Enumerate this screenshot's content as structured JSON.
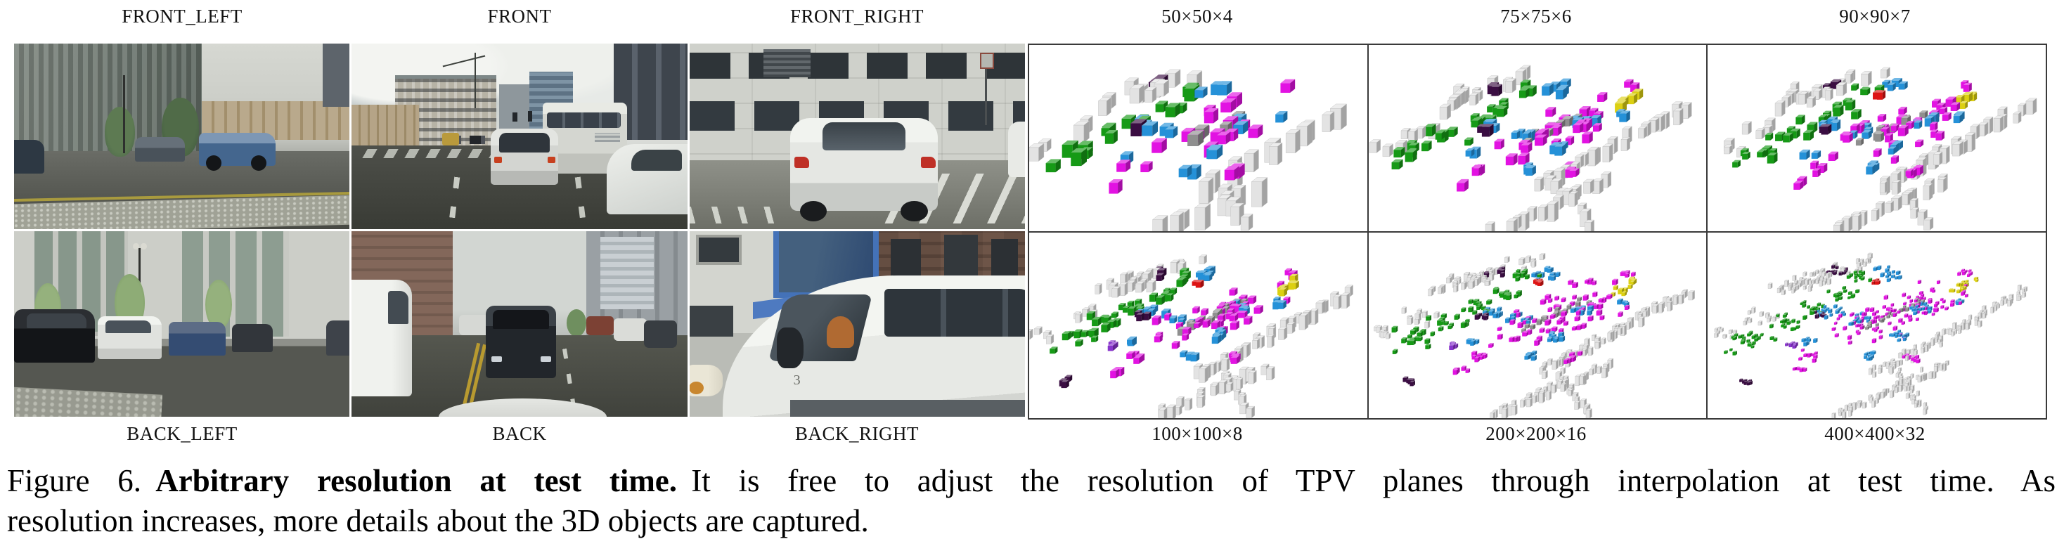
{
  "labels": {
    "camera_top": [
      "FRONT_LEFT",
      "FRONT",
      "FRONT_RIGHT"
    ],
    "camera_bottom": [
      "BACK_LEFT",
      "BACK",
      "BACK_RIGHT"
    ]
  },
  "voxel_panels": [
    {
      "label": "50×50×4",
      "cube": 13,
      "density": 0.5,
      "seed": 11
    },
    {
      "label": "75×75×6",
      "cube": 9.5,
      "density": 0.9,
      "seed": 22
    },
    {
      "label": "90×90×7",
      "cube": 8.5,
      "density": 1.05,
      "seed": 33
    },
    {
      "label": "100×100×8",
      "cube": 7.5,
      "density": 1.35,
      "seed": 44
    },
    {
      "label": "200×200×16",
      "cube": 5,
      "density": 2.3,
      "seed": 55
    },
    {
      "label": "400×400×32",
      "cube": 3.6,
      "density": 3.4,
      "seed": 66
    }
  ],
  "voxel_colors": {
    "green": "#169a16",
    "blue": "#2591d8",
    "magenta": "#e212e2",
    "lightgray": "#e3e3e3",
    "gray": "#8f8f8f",
    "darkpurple": "#3a0d42",
    "yellow": "#dcd012",
    "red": "#dd1414",
    "violet": "#8834cc"
  },
  "scene_marks": {
    "van_number": "3"
  },
  "caption": {
    "figure_label": "Figure 6.",
    "highlight": "Arbitrary resolution at test time.",
    "line1_rest": "It is free to adjust the resolution of TPV planes through interpolation at test time. As",
    "line2": "resolution increases, more details about the 3D objects are captured."
  }
}
